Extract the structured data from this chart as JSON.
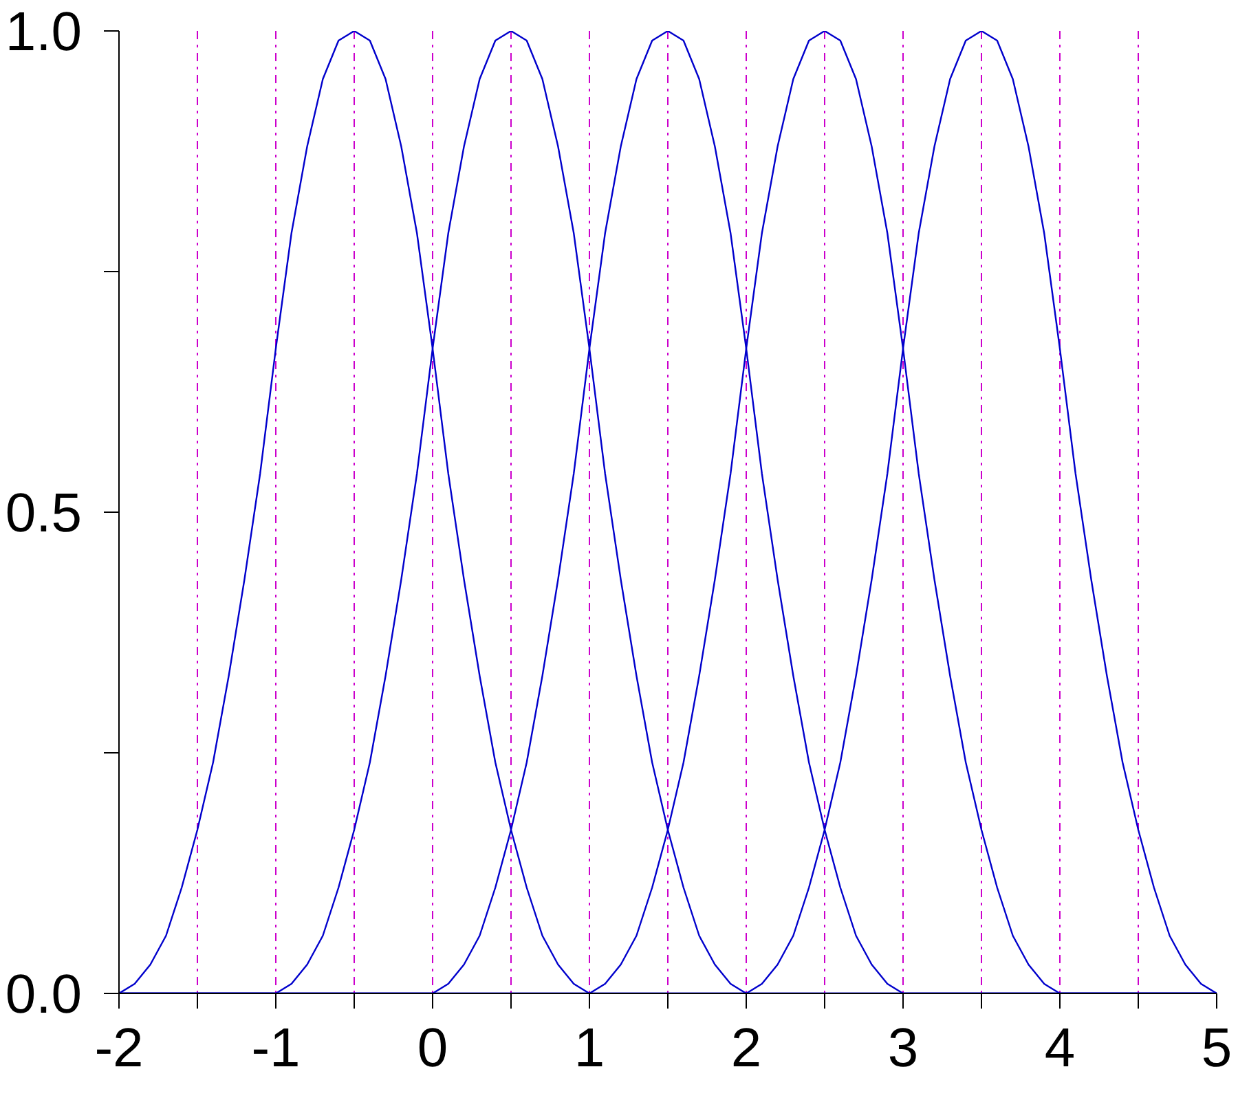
{
  "chart_data": {
    "type": "line",
    "xlim": [
      -2,
      5
    ],
    "ylim": [
      0,
      1
    ],
    "xticks": [
      -2,
      {
        "value": -1.5,
        "label": null
      },
      -1,
      {
        "value": -0.5,
        "label": null
      },
      0,
      {
        "value": 0.5,
        "label": null
      },
      1,
      {
        "value": 1.5,
        "label": null
      },
      2,
      {
        "value": 2.5,
        "label": null
      },
      3,
      {
        "value": 3.5,
        "label": null
      },
      4,
      {
        "value": 4.5,
        "label": null
      },
      5
    ],
    "yticks": [
      {
        "value": 0,
        "label": "0.0"
      },
      {
        "value": 0.25,
        "label": null
      },
      {
        "value": 0.5,
        "label": "0.5"
      },
      {
        "value": 0.75,
        "label": null
      },
      {
        "value": 1,
        "label": "1.0"
      }
    ],
    "grid": false,
    "line_style": "solid",
    "series": [
      {
        "color": "#0000cc",
        "x": [
          -2.0,
          -1.9,
          -1.8,
          -1.7,
          -1.6,
          -1.5,
          -1.4,
          -1.3,
          -1.2,
          -1.1,
          -1.0,
          -0.9,
          -0.8,
          -0.7,
          -0.6,
          -0.5,
          -0.4,
          -0.3,
          -0.2,
          -0.1,
          0,
          0.1,
          0.2,
          0.3,
          0.4,
          0.5,
          0.6,
          0.7,
          0.8,
          0.9,
          1.0,
          5
        ],
        "values": [
          0,
          0.01,
          0.03,
          0.06,
          0.11,
          0.17,
          0.24,
          0.33,
          0.43,
          0.54,
          0.67,
          0.79,
          0.88,
          0.95,
          0.99,
          1.0,
          0.99,
          0.95,
          0.88,
          0.79,
          0.67,
          0.54,
          0.43,
          0.33,
          0.24,
          0.17,
          0.11,
          0.06,
          0.03,
          0.01,
          0,
          0
        ]
      },
      {
        "color": "#0000cc",
        "x": [
          -2,
          -1.0,
          -0.9,
          -0.8,
          -0.7,
          -0.6,
          -0.5,
          -0.4,
          -0.3,
          -0.2,
          -0.1,
          0,
          0.1,
          0.2,
          0.3,
          0.4,
          0.5,
          0.6,
          0.7,
          0.8,
          0.9,
          1.0,
          1.1,
          1.2,
          1.3,
          1.4,
          1.5,
          1.6,
          1.7,
          1.8,
          1.9,
          2.0,
          5
        ],
        "values": [
          0,
          0,
          0.01,
          0.03,
          0.06,
          0.11,
          0.17,
          0.24,
          0.33,
          0.43,
          0.54,
          0.67,
          0.79,
          0.88,
          0.95,
          0.99,
          1.0,
          0.99,
          0.95,
          0.88,
          0.79,
          0.67,
          0.54,
          0.43,
          0.33,
          0.24,
          0.17,
          0.11,
          0.06,
          0.03,
          0.01,
          0,
          0
        ]
      },
      {
        "color": "#0000cc",
        "x": [
          -2,
          0,
          0.1,
          0.2,
          0.3,
          0.4,
          0.5,
          0.6,
          0.7,
          0.8,
          0.9,
          1.0,
          1.1,
          1.2,
          1.3,
          1.4,
          1.5,
          1.6,
          1.7,
          1.8,
          1.9,
          2.0,
          2.1,
          2.2,
          2.3,
          2.4,
          2.5,
          2.6,
          2.7,
          2.8,
          2.9,
          3.0,
          5
        ],
        "values": [
          0,
          0,
          0.01,
          0.03,
          0.06,
          0.11,
          0.17,
          0.24,
          0.33,
          0.43,
          0.54,
          0.67,
          0.79,
          0.88,
          0.95,
          0.99,
          1.0,
          0.99,
          0.95,
          0.88,
          0.79,
          0.67,
          0.54,
          0.43,
          0.33,
          0.24,
          0.17,
          0.11,
          0.06,
          0.03,
          0.01,
          0,
          0
        ]
      },
      {
        "color": "#0000cc",
        "x": [
          -2,
          1.0,
          1.1,
          1.2,
          1.3,
          1.4,
          1.5,
          1.6,
          1.7,
          1.8,
          1.9,
          2.0,
          2.1,
          2.2,
          2.3,
          2.4,
          2.5,
          2.6,
          2.7,
          2.8,
          2.9,
          3.0,
          3.1,
          3.2,
          3.3,
          3.4,
          3.5,
          3.6,
          3.7,
          3.8,
          3.9,
          4.0,
          5
        ],
        "values": [
          0,
          0,
          0.01,
          0.03,
          0.06,
          0.11,
          0.17,
          0.24,
          0.33,
          0.43,
          0.54,
          0.67,
          0.79,
          0.88,
          0.95,
          0.99,
          1.0,
          0.99,
          0.95,
          0.88,
          0.79,
          0.67,
          0.54,
          0.43,
          0.33,
          0.24,
          0.17,
          0.11,
          0.06,
          0.03,
          0.01,
          0,
          0
        ]
      },
      {
        "color": "#0000cc",
        "x": [
          -2,
          2.0,
          2.1,
          2.2,
          2.3,
          2.4,
          2.5,
          2.6,
          2.7,
          2.8,
          2.9,
          3.0,
          3.1,
          3.2,
          3.3,
          3.4,
          3.5,
          3.6,
          3.7,
          3.8,
          3.9,
          4.0,
          4.1,
          4.2,
          4.3,
          4.4,
          4.5,
          4.6,
          4.7,
          4.8,
          4.9,
          5.0
        ],
        "values": [
          0,
          0,
          0.01,
          0.03,
          0.06,
          0.11,
          0.17,
          0.24,
          0.33,
          0.43,
          0.54,
          0.67,
          0.79,
          0.88,
          0.95,
          0.99,
          1.0,
          0.99,
          0.95,
          0.88,
          0.79,
          0.67,
          0.54,
          0.43,
          0.33,
          0.24,
          0.17,
          0.11,
          0.06,
          0.03,
          0.01,
          0
        ]
      }
    ],
    "ref_lines": [
      {
        "axis": "x",
        "value": -1.5,
        "color": "#cc00cc",
        "line_style": "dashdot"
      },
      {
        "axis": "x",
        "value": -1,
        "color": "#cc00cc",
        "line_style": "dashdot"
      },
      {
        "axis": "x",
        "value": -0.5,
        "color": "#cc00cc",
        "line_style": "dashdot"
      },
      {
        "axis": "x",
        "value": 0,
        "color": "#cc00cc",
        "line_style": "dashdot"
      },
      {
        "axis": "x",
        "value": 0.5,
        "color": "#cc00cc",
        "line_style": "dashdot"
      },
      {
        "axis": "x",
        "value": 1,
        "color": "#cc00cc",
        "line_style": "dashdot"
      },
      {
        "axis": "x",
        "value": 1.5,
        "color": "#cc00cc",
        "line_style": "dashdot"
      },
      {
        "axis": "x",
        "value": 2,
        "color": "#cc00cc",
        "line_style": "dashdot"
      },
      {
        "axis": "x",
        "value": 2.5,
        "color": "#cc00cc",
        "line_style": "dashdot"
      },
      {
        "axis": "x",
        "value": 3,
        "color": "#cc00cc",
        "line_style": "dashdot"
      },
      {
        "axis": "x",
        "value": 3.5,
        "color": "#cc00cc",
        "line_style": "dashdot"
      },
      {
        "axis": "x",
        "value": 4,
        "color": "#cc00cc",
        "line_style": "dashdot"
      },
      {
        "axis": "x",
        "value": 4.5,
        "color": "#cc00cc",
        "line_style": "dashdot"
      }
    ]
  }
}
